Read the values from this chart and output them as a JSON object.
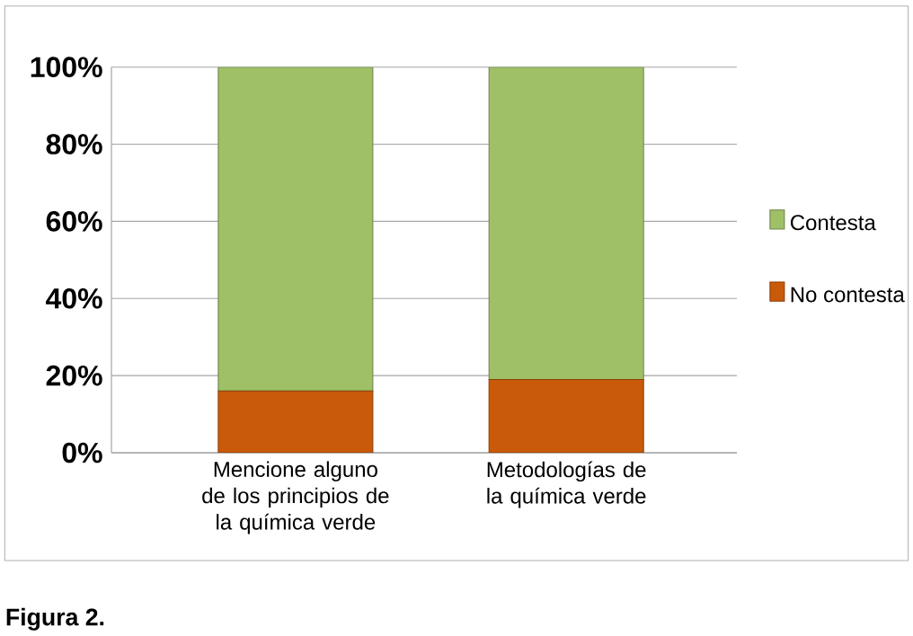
{
  "chart_data": {
    "type": "bar",
    "stacked": true,
    "categories": [
      "Mencione alguno de los principios de la química verde",
      "Metodologías de la química verde"
    ],
    "series": [
      {
        "name": "No contesta",
        "color": "#c85a0a",
        "values": [
          16,
          19
        ]
      },
      {
        "name": "Contesta",
        "color": "#9fc067",
        "values": [
          84,
          81
        ]
      }
    ],
    "ylim": [
      0,
      100
    ],
    "yticks": [
      {
        "value": 0,
        "label": "0%"
      },
      {
        "value": 20,
        "label": "20%"
      },
      {
        "value": 40,
        "label": "40%"
      },
      {
        "value": 60,
        "label": "60%"
      },
      {
        "value": 80,
        "label": "80%"
      },
      {
        "value": 100,
        "label": "100%"
      }
    ],
    "grid": "y",
    "legend": "right",
    "annotations": [
      "Figura 2."
    ]
  }
}
